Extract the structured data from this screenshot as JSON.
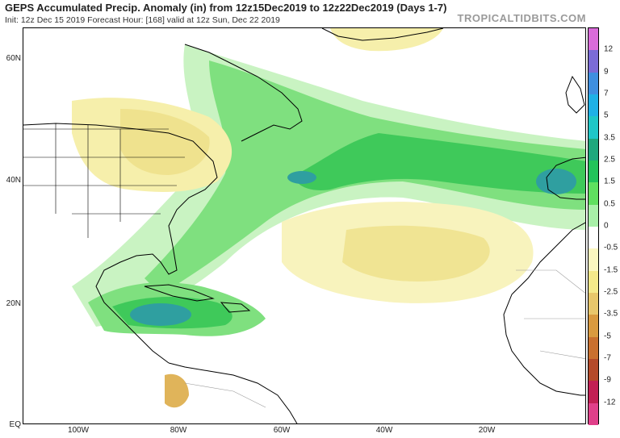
{
  "header": {
    "title": "GEPS Accumulated Precip. Anomaly (in) from 12z15Dec2019 to 12z22Dec2019 (Days 1-7)",
    "subtitle": "Init: 12z Dec 15 2019   Forecast Hour: [168]   valid at 12z Sun, Dec 22 2019",
    "brand": "TROPICALTIDBITS.COM"
  },
  "axes": {
    "lat_labels": [
      "60N",
      "40N",
      "20N",
      "EQ"
    ],
    "lon_labels": [
      "100W",
      "80W",
      "60W",
      "40W",
      "20W"
    ]
  },
  "colorbar": {
    "labels": [
      "12",
      "9",
      "7",
      "5",
      "3.5",
      "2.5",
      "1.5",
      "0.5",
      "0",
      "-0.5",
      "-1.5",
      "-2.5",
      "-3.5",
      "-5",
      "-7",
      "-9",
      "-12"
    ],
    "colors": [
      "#d96bd9",
      "#7b6bd6",
      "#3f8fe0",
      "#1fb1e6",
      "#1fc7c7",
      "#1fa87d",
      "#22c35a",
      "#5fe05f",
      "#a8f0a8",
      "#ffffff",
      "#fbf7c0",
      "#f4e98a",
      "#e8c76b",
      "#d99a3f",
      "#c9702f",
      "#b44a2a",
      "#c22054",
      "#e0408a"
    ]
  },
  "colors": {
    "land_line": "#000000",
    "wet_light": "#b5f0b0",
    "wet_mid": "#5bd86a",
    "wet_strong": "#2ec24f",
    "wet_blue": "#2f9fa0",
    "dry_light": "#fbf6c4",
    "dry_mid": "#f1e48f",
    "dry_strong": "#d4a44a"
  }
}
